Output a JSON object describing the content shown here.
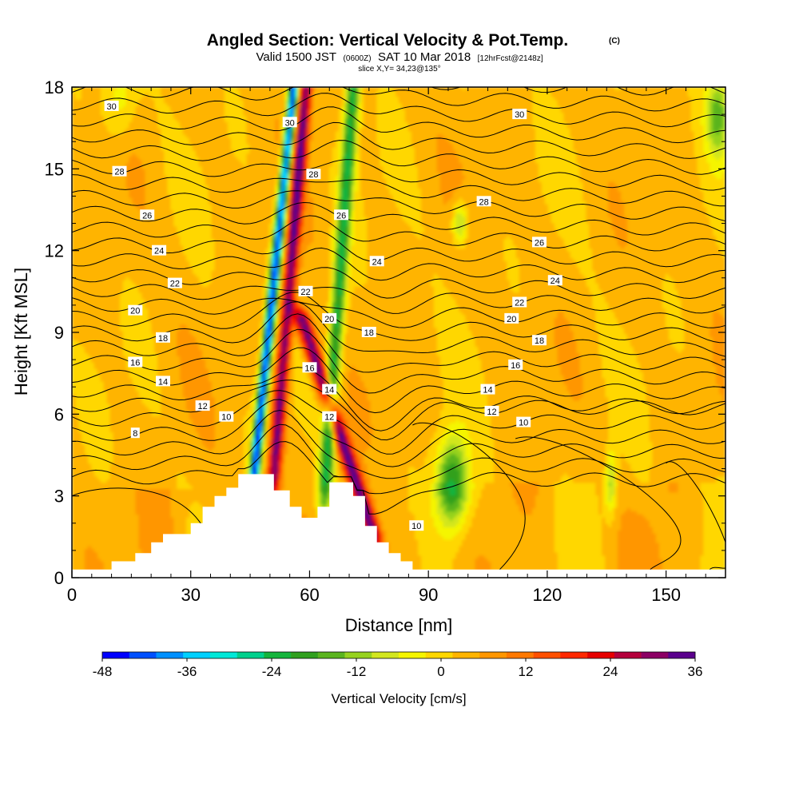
{
  "chart_data": {
    "type": "heatmap",
    "title": "Angled Section: Vertical Velocity & Pot.Temp.",
    "title_unit": "(C)",
    "subtitle_parts": [
      "Valid 1500 JST",
      "(0600Z)",
      "SAT 10 Mar 2018",
      "[12hrFcst@2148z]"
    ],
    "slice_label": "slice X,Y= 34,23@135°",
    "xlabel": "Distance [nm]",
    "ylabel": "Height [Kft MSL]",
    "xlim": [
      0,
      165
    ],
    "ylim": [
      0,
      18
    ],
    "x_ticks": [
      0,
      30,
      60,
      90,
      120,
      150
    ],
    "y_ticks": [
      0,
      3,
      6,
      9,
      12,
      15,
      18
    ],
    "colorbar": {
      "label": "Vertical Velocity [cm/s]",
      "min": -48,
      "max": 36,
      "step": 4,
      "tick_labels": [
        "-48",
        "-36",
        "-24",
        "-12",
        "0",
        "12",
        "24",
        "36"
      ],
      "colors": [
        "#0000ff",
        "#0050ff",
        "#0090ff",
        "#00d0ff",
        "#00e8d8",
        "#00d08c",
        "#14b43c",
        "#30a01e",
        "#5ab41e",
        "#96d21e",
        "#d2e61e",
        "#f5f500",
        "#ffd700",
        "#ffb400",
        "#ff9600",
        "#ff7800",
        "#ff5000",
        "#ff2800",
        "#e60000",
        "#b4003c",
        "#8c0064",
        "#5a008c"
      ]
    },
    "terrain": [
      [
        0,
        0.3
      ],
      [
        10,
        0.3
      ],
      [
        10,
        0.6
      ],
      [
        16,
        0.6
      ],
      [
        16,
        0.9
      ],
      [
        20,
        0.9
      ],
      [
        20,
        1.3
      ],
      [
        23,
        1.3
      ],
      [
        23,
        1.6
      ],
      [
        30,
        1.6
      ],
      [
        30,
        2.0
      ],
      [
        33,
        2.0
      ],
      [
        33,
        2.6
      ],
      [
        36,
        2.6
      ],
      [
        36,
        3.0
      ],
      [
        39,
        3.0
      ],
      [
        39,
        3.3
      ],
      [
        42,
        3.3
      ],
      [
        42,
        3.8
      ],
      [
        51,
        3.8
      ],
      [
        51,
        3.2
      ],
      [
        55,
        3.2
      ],
      [
        55,
        2.6
      ],
      [
        58,
        2.6
      ],
      [
        58,
        2.2
      ],
      [
        62,
        2.2
      ],
      [
        62,
        2.6
      ],
      [
        65,
        2.6
      ],
      [
        65,
        3.5
      ],
      [
        71,
        3.5
      ],
      [
        71,
        3.0
      ],
      [
        74,
        3.0
      ],
      [
        74,
        1.9
      ],
      [
        77,
        1.9
      ],
      [
        77,
        1.3
      ],
      [
        80,
        1.3
      ],
      [
        80,
        0.9
      ],
      [
        83,
        0.9
      ],
      [
        83,
        0.6
      ],
      [
        86,
        0.6
      ],
      [
        86,
        0.3
      ],
      [
        165,
        0.3
      ]
    ],
    "velocity_features": [
      {
        "x0": 46,
        "h0": 3.8,
        "x1": 56,
        "h1": 18,
        "peak": -46,
        "kind": "line",
        "width": 1.3
      },
      {
        "x0": 51,
        "h0": 3.8,
        "x1": 59,
        "h1": 18,
        "peak": 30,
        "kind": "line",
        "width": 1.6
      },
      {
        "x0": 64,
        "h0": 3.5,
        "x1": 71,
        "h1": 18,
        "peak": -26,
        "kind": "line",
        "width": 1.8
      },
      {
        "x0": 76,
        "h0": 1.6,
        "x1": 58,
        "h1": 9.5,
        "peak": 32,
        "kind": "line",
        "width": 2.0
      },
      {
        "x0": 96,
        "h0": 3.5,
        "peak": -26,
        "kind": "blob",
        "wx": 4,
        "wy": 1.6
      },
      {
        "x0": 163,
        "h0": 17,
        "peak": -18,
        "kind": "blob",
        "wx": 3,
        "wy": 1.5
      },
      {
        "x0": 98,
        "h0": 13,
        "peak": -16,
        "kind": "blob",
        "wx": 2,
        "wy": 0.8
      },
      {
        "x0": 136,
        "h0": 3.5,
        "peak": -14,
        "kind": "blob",
        "wx": 1.5,
        "wy": 1.2
      },
      {
        "x0": 12,
        "h0": 17.5,
        "peak": -8,
        "kind": "blob",
        "wx": 4,
        "wy": 1.5
      }
    ],
    "theta_labels": [
      {
        "text": "30",
        "x": 10,
        "h": 17.3
      },
      {
        "text": "30",
        "x": 55,
        "h": 16.7
      },
      {
        "text": "30",
        "x": 113,
        "h": 17.0
      },
      {
        "text": "28",
        "x": 12,
        "h": 14.9
      },
      {
        "text": "28",
        "x": 61,
        "h": 14.8
      },
      {
        "text": "28",
        "x": 104,
        "h": 13.8
      },
      {
        "text": "26",
        "x": 19,
        "h": 13.3
      },
      {
        "text": "26",
        "x": 68,
        "h": 13.3
      },
      {
        "text": "26",
        "x": 118,
        "h": 12.3
      },
      {
        "text": "24",
        "x": 22,
        "h": 12.0
      },
      {
        "text": "24",
        "x": 77,
        "h": 11.6
      },
      {
        "text": "24",
        "x": 122,
        "h": 10.9
      },
      {
        "text": "22",
        "x": 26,
        "h": 10.8
      },
      {
        "text": "22",
        "x": 59,
        "h": 10.5
      },
      {
        "text": "22",
        "x": 113,
        "h": 10.1
      },
      {
        "text": "20",
        "x": 16,
        "h": 9.8
      },
      {
        "text": "20",
        "x": 65,
        "h": 9.5
      },
      {
        "text": "20",
        "x": 111,
        "h": 9.5
      },
      {
        "text": "18",
        "x": 23,
        "h": 8.8
      },
      {
        "text": "18",
        "x": 75,
        "h": 9.0
      },
      {
        "text": "18",
        "x": 118,
        "h": 8.7
      },
      {
        "text": "16",
        "x": 16,
        "h": 7.9
      },
      {
        "text": "16",
        "x": 60,
        "h": 7.7
      },
      {
        "text": "16",
        "x": 112,
        "h": 7.8
      },
      {
        "text": "14",
        "x": 23,
        "h": 7.2
      },
      {
        "text": "14",
        "x": 65,
        "h": 6.9
      },
      {
        "text": "14",
        "x": 105,
        "h": 6.9
      },
      {
        "text": "12",
        "x": 33,
        "h": 6.3
      },
      {
        "text": "12",
        "x": 65,
        "h": 5.9
      },
      {
        "text": "12",
        "x": 106,
        "h": 6.1
      },
      {
        "text": "10",
        "x": 39,
        "h": 5.9
      },
      {
        "text": "10",
        "x": 114,
        "h": 5.7
      },
      {
        "text": "10",
        "x": 87,
        "h": 1.9
      },
      {
        "text": "8",
        "x": 16,
        "h": 5.3
      }
    ]
  }
}
